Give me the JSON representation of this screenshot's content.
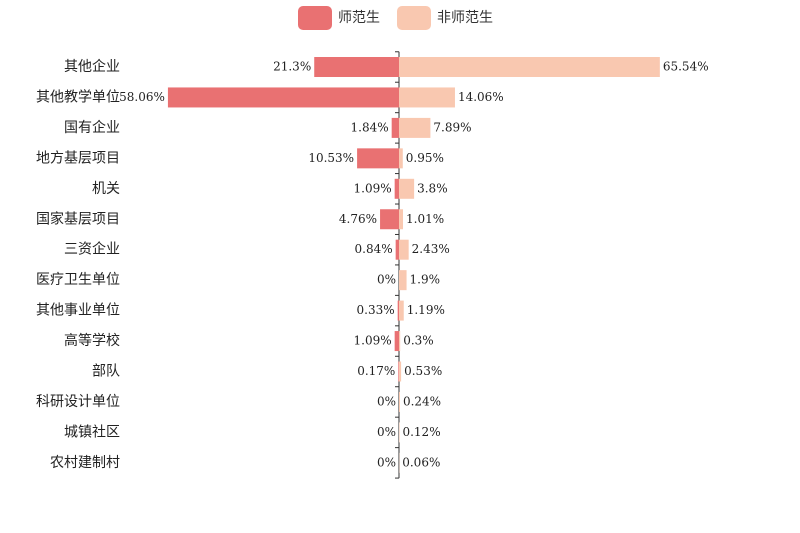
{
  "chart_data": {
    "type": "butterfly-bar",
    "categories": [
      "其他企业",
      "其他教学单位",
      "国有企业",
      "地方基层项目",
      "机关",
      "国家基层项目",
      "三资企业",
      "医疗卫生单位",
      "其他事业单位",
      "高等学校",
      "部队",
      "科研设计单位",
      "城镇社区",
      "农村建制村"
    ],
    "series": [
      {
        "name": "师范生",
        "color": "#e97172",
        "values": [
          21.3,
          58.06,
          1.84,
          10.53,
          1.09,
          4.76,
          0.84,
          0,
          0.33,
          1.09,
          0.17,
          0,
          0,
          0
        ],
        "value_labels": [
          "21.3%",
          "58.06%",
          "1.84%",
          "10.53%",
          "1.09%",
          "4.76%",
          "0.84%",
          "0%",
          "0.33%",
          "1.09%",
          "0.17%",
          "0%",
          "0%",
          "0%"
        ]
      },
      {
        "name": "非师范生",
        "color": "#f9c8b0",
        "values": [
          65.54,
          14.06,
          7.89,
          0.95,
          3.8,
          1.01,
          2.43,
          1.9,
          1.19,
          0.3,
          0.53,
          0.24,
          0.12,
          0.06
        ],
        "value_labels": [
          "65.54%",
          "14.06%",
          "7.89%",
          "0.95%",
          "3.8%",
          "1.01%",
          "2.43%",
          "1.9%",
          "1.19%",
          "0.3%",
          "0.53%",
          "0.24%",
          "0.12%",
          "0.06%"
        ]
      }
    ]
  }
}
